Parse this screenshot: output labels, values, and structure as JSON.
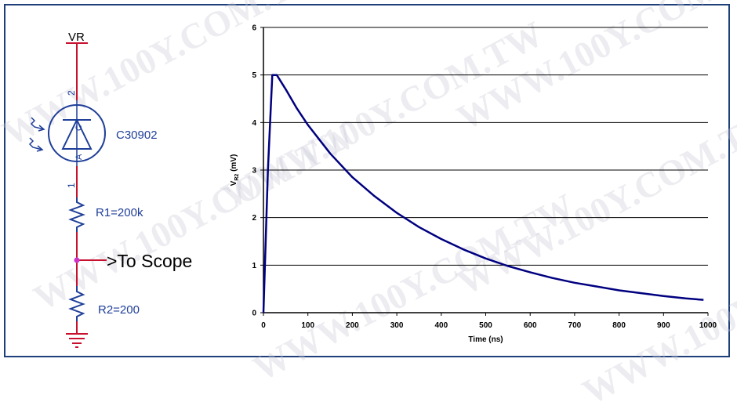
{
  "circuit": {
    "supply_label": "VR",
    "photodiode_label": "C30902",
    "pin2_label": "2",
    "pin1_label": "1",
    "anode_label": "A",
    "cathode_label": "C",
    "r1_label": "R1=200k",
    "r2_label": "R2=200",
    "output_label": ">To Scope",
    "colors": {
      "wire": "#c8102e",
      "component": "#1f3f99",
      "node": "#cc33cc"
    }
  },
  "watermark_text": "WWW.100Y.COM.TW",
  "chart_data": {
    "type": "line",
    "title": "",
    "xlabel": "Time (ns)",
    "ylabel_main": "V",
    "ylabel_sub": "R2",
    "ylabel_unit": "(mV)",
    "xlim": [
      0,
      1000
    ],
    "ylim": [
      0,
      6
    ],
    "xticks": [
      0,
      100,
      200,
      300,
      400,
      500,
      600,
      700,
      800,
      900,
      1000
    ],
    "yticks": [
      0,
      1,
      2,
      3,
      4,
      5,
      6
    ],
    "grid": "horizontal",
    "series": [
      {
        "color": "#000080",
        "x": [
          0,
          10,
          20,
          30,
          50,
          75,
          100,
          150,
          200,
          250,
          300,
          350,
          400,
          450,
          500,
          550,
          600,
          650,
          700,
          750,
          800,
          850,
          900,
          950,
          990
        ],
        "y": [
          0,
          3.0,
          5.0,
          5.0,
          4.7,
          4.3,
          3.95,
          3.35,
          2.85,
          2.45,
          2.1,
          1.8,
          1.55,
          1.33,
          1.14,
          0.98,
          0.85,
          0.73,
          0.63,
          0.55,
          0.47,
          0.41,
          0.35,
          0.3,
          0.27
        ]
      }
    ]
  }
}
